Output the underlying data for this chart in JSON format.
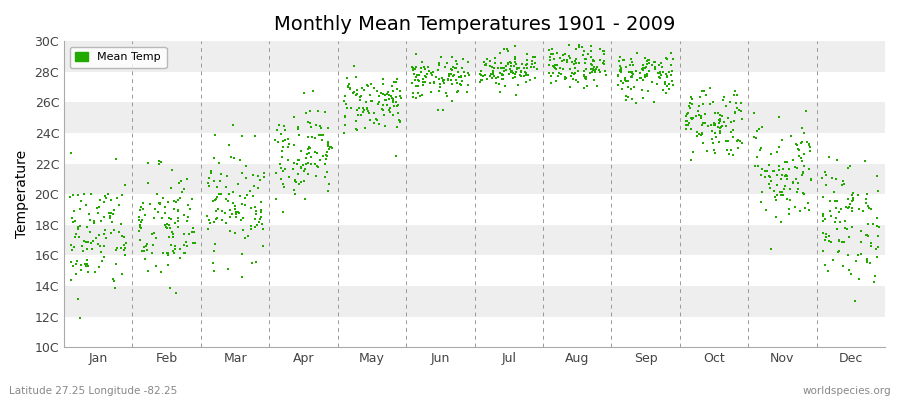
{
  "title": "Monthly Mean Temperatures 1901 - 2009",
  "ylabel": "Temperature",
  "xlabel": "",
  "bottom_left_label": "Latitude 27.25 Longitude -82.25",
  "bottom_right_label": "worldspecies.org",
  "legend_label": "Mean Temp",
  "dot_color": "#22AA00",
  "background_color": "#FFFFFF",
  "plot_bg_color": "#FFFFFF",
  "band_color_light": "#FFFFFF",
  "band_color_dark": "#EEEEEE",
  "ylim": [
    10,
    30
  ],
  "yticks": [
    10,
    12,
    14,
    16,
    18,
    20,
    22,
    24,
    26,
    28,
    30
  ],
  "ytick_labels": [
    "10C",
    "12C",
    "14C",
    "16C",
    "18C",
    "20C",
    "22C",
    "24C",
    "26C",
    "28C",
    "30C"
  ],
  "months": [
    "Jan",
    "Feb",
    "Mar",
    "Apr",
    "May",
    "Jun",
    "Jul",
    "Aug",
    "Sep",
    "Oct",
    "Nov",
    "Dec"
  ],
  "month_mean_temps": [
    17.2,
    17.8,
    19.5,
    22.8,
    26.0,
    27.5,
    28.2,
    28.3,
    27.8,
    24.8,
    21.5,
    18.2
  ],
  "month_std_temps": [
    2.0,
    2.0,
    1.8,
    1.5,
    1.0,
    0.7,
    0.6,
    0.7,
    0.8,
    1.2,
    1.8,
    2.0
  ],
  "n_years": 109,
  "seed": 42
}
